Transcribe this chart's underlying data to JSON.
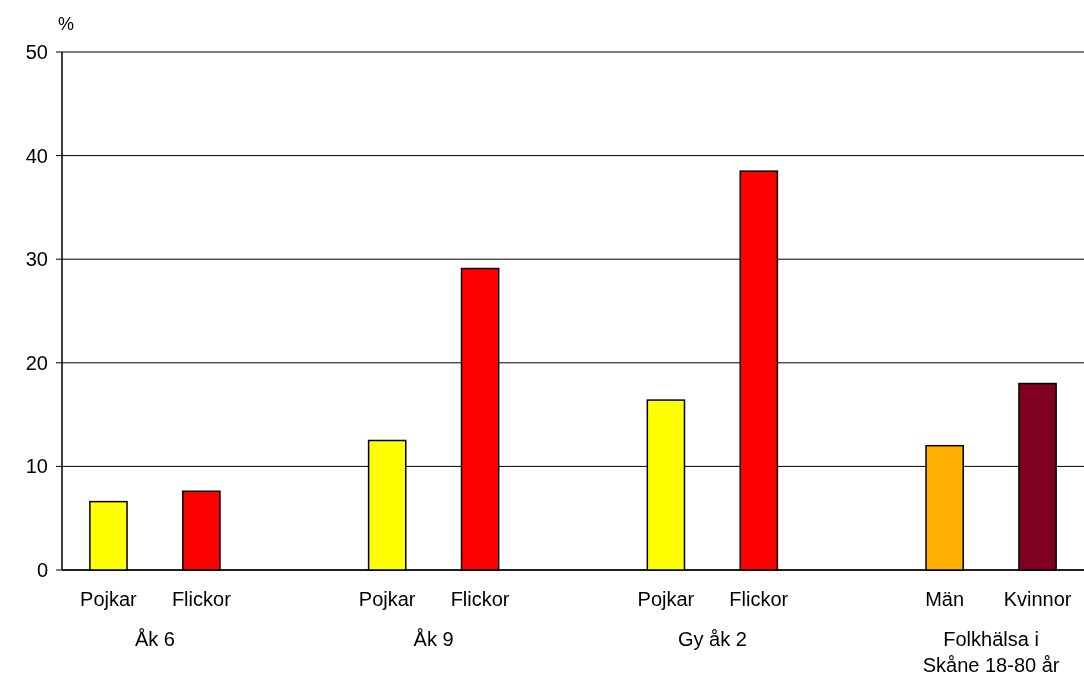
{
  "chart_data": {
    "type": "bar",
    "ylabel": "%",
    "categories": [
      "Pojkar",
      "Flickor",
      null,
      "Pojkar",
      "Flickor",
      null,
      "Pojkar",
      "Flickor",
      null,
      "Män",
      "Kvinnor"
    ],
    "values": [
      6.6,
      7.6,
      null,
      12.5,
      29.1,
      null,
      16.4,
      38.5,
      null,
      12.0,
      18.0
    ],
    "colors": [
      "#ffff00",
      "#ff0000",
      null,
      "#ffff00",
      "#ff0000",
      null,
      "#ffff00",
      "#ff0000",
      null,
      "#ffb000",
      "#800020"
    ],
    "ylim": [
      0,
      50
    ],
    "yticks": [
      0,
      10,
      20,
      30,
      40,
      50
    ],
    "grid": "y",
    "annotations": [
      "Åk 6",
      "Åk 9",
      "Gy åk 2",
      "Folkhälsa i\nSkåne 18-80 år"
    ]
  }
}
